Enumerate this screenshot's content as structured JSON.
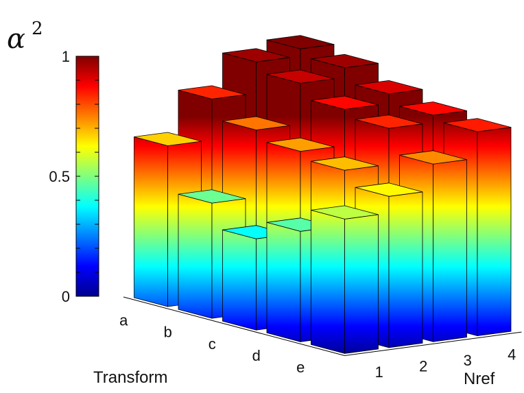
{
  "chart_data": {
    "type": "bar3d",
    "zlabel": "α",
    "zlabel_superscript": "2",
    "xlabel": "Transform",
    "ylabel": "Nref",
    "categories_transform": [
      "a",
      "b",
      "c",
      "d",
      "e"
    ],
    "categories_nref": [
      "1",
      "2",
      "3",
      "4"
    ],
    "zlim": [
      0,
      1
    ],
    "z_ticks": [
      "0",
      "0.5",
      "1"
    ],
    "colormap": "jet",
    "colorbar": true,
    "grid": false,
    "values": [
      [
        0.67,
        0.84,
        0.97,
        1.0
      ],
      [
        0.48,
        0.76,
        0.93,
        0.97
      ],
      [
        0.38,
        0.72,
        0.87,
        0.91
      ],
      [
        0.46,
        0.69,
        0.84,
        0.87
      ],
      [
        0.56,
        0.63,
        0.74,
        0.85
      ]
    ]
  }
}
